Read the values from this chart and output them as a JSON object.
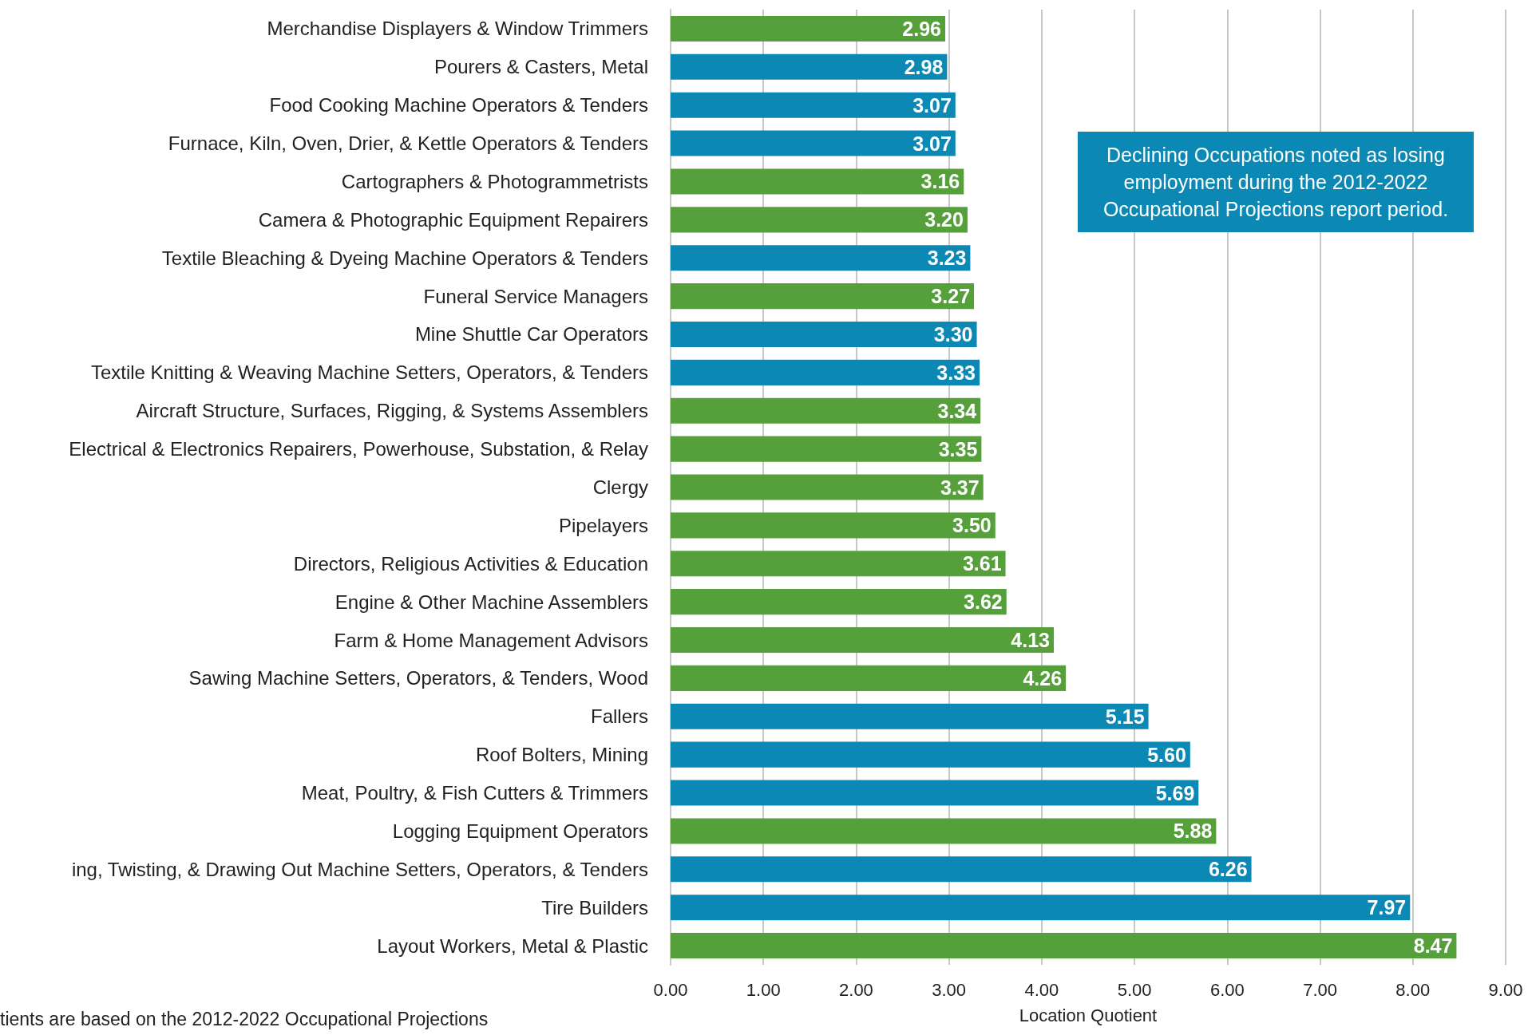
{
  "chart_data": {
    "type": "bar",
    "orientation": "horizontal",
    "xlabel": "Location Quotient",
    "categories": [
      "Merchandise Displayers & Window Trimmers",
      "Pourers & Casters, Metal",
      "Food Cooking Machine Operators & Tenders",
      "Furnace, Kiln, Oven, Drier, & Kettle Operators & Tenders",
      "Cartographers & Photogrammetrists",
      "Camera & Photographic Equipment Repairers",
      "Textile Bleaching & Dyeing Machine Operators & Tenders",
      "Funeral Service Managers",
      "Mine Shuttle Car Operators",
      "Textile Knitting & Weaving Machine Setters, Operators, & Tenders",
      "Aircraft Structure, Surfaces, Rigging, & Systems Assemblers",
      "Electrical & Electronics Repairers, Powerhouse, Substation, & Relay",
      "Clergy",
      "Pipelayers",
      "Directors, Religious Activities & Education",
      "Engine & Other Machine Assemblers",
      "Farm & Home Management Advisors",
      "Sawing Machine Setters, Operators, & Tenders, Wood",
      "Fallers",
      "Roof Bolters, Mining",
      "Meat, Poultry, & Fish Cutters & Trimmers",
      "Logging Equipment Operators",
      "ing, Twisting, & Drawing Out Machine Setters, Operators, & Tenders",
      "Tire Builders",
      "Layout Workers, Metal & Plastic"
    ],
    "values": [
      2.96,
      2.98,
      3.07,
      3.07,
      3.16,
      3.2,
      3.23,
      3.27,
      3.3,
      3.33,
      3.34,
      3.35,
      3.37,
      3.5,
      3.61,
      3.62,
      4.13,
      4.26,
      5.15,
      5.6,
      5.69,
      5.88,
      6.26,
      7.97,
      8.47
    ],
    "value_labels": [
      "2.96",
      "2.98",
      "3.07",
      "3.07",
      "3.16",
      "3.20",
      "3.23",
      "3.27",
      "3.30",
      "3.33",
      "3.34",
      "3.35",
      "3.37",
      "3.50",
      "3.61",
      "3.62",
      "4.13",
      "4.26",
      "5.15",
      "5.60",
      "5.69",
      "5.88",
      "6.26",
      "7.97",
      "8.47"
    ],
    "colors": [
      "#56a03b",
      "#0b88b3",
      "#0b88b3",
      "#0b88b3",
      "#56a03b",
      "#56a03b",
      "#0b88b3",
      "#56a03b",
      "#0b88b3",
      "#0b88b3",
      "#56a03b",
      "#56a03b",
      "#56a03b",
      "#56a03b",
      "#56a03b",
      "#56a03b",
      "#56a03b",
      "#56a03b",
      "#0b88b3",
      "#0b88b3",
      "#0b88b3",
      "#56a03b",
      "#0b88b3",
      "#0b88b3",
      "#56a03b"
    ],
    "xlim": [
      0,
      9
    ],
    "xticks": [
      {
        "value": 0,
        "label": "0.00"
      },
      {
        "value": 1,
        "label": "1.00"
      },
      {
        "value": 2,
        "label": "2.00"
      },
      {
        "value": 3,
        "label": "3.00"
      },
      {
        "value": 4,
        "label": "4.00"
      },
      {
        "value": 5,
        "label": "5.00"
      },
      {
        "value": 6,
        "label": "6.00"
      },
      {
        "value": 7,
        "label": "7.00"
      },
      {
        "value": 8,
        "label": "8.00"
      },
      {
        "value": 9,
        "label": "9.00"
      }
    ],
    "grid": "x",
    "annotations": [
      "Declining Occupations noted as losing employment during the 2012-2022 Occupational Projections report period.",
      "tients are based on the 2012-2022 Occupational Projections"
    ]
  }
}
